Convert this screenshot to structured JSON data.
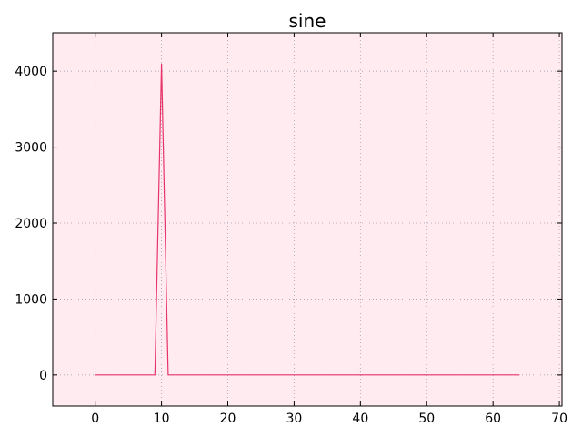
{
  "chart_data": {
    "type": "line",
    "title": "sine",
    "xlabel": "",
    "ylabel": "",
    "xlim": [
      -6.4,
      70.4
    ],
    "ylim": [
      -409.6,
      4505.6
    ],
    "x_ticks": [
      0,
      10,
      20,
      30,
      40,
      50,
      60,
      70
    ],
    "y_ticks": [
      0,
      1000,
      2000,
      3000,
      4000
    ],
    "grid": true,
    "series": [
      {
        "x": [
          0,
          9,
          10,
          11,
          64
        ],
        "y": [
          0,
          0,
          4096,
          0,
          0
        ],
        "color": "#e8336a"
      }
    ],
    "colors": {
      "plot_background": "#ffebf0",
      "grid": "#a0a0b0",
      "line": "#e8336a"
    }
  }
}
